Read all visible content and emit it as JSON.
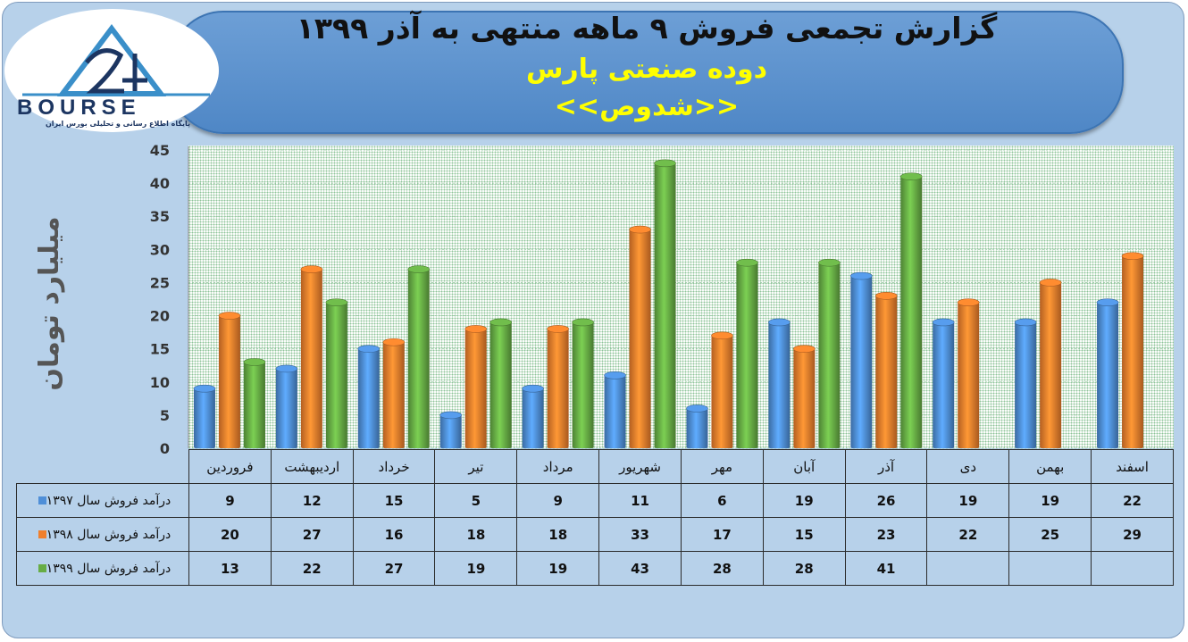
{
  "header": {
    "title": "گزارش تجمعی فروش ۹ ماهه منتهی به آذر ۱۳۹۹",
    "company": "دوده صنعتی پارس",
    "ticker": "<<شدوص>>"
  },
  "logo": {
    "text": "BOURSE",
    "subtitle": "پایگاه اطلاع رسانی و تحلیلی بورس ایران"
  },
  "chart_data": {
    "type": "bar",
    "categories": [
      "فروردین",
      "اردیبهشت",
      "خرداد",
      "تیر",
      "مرداد",
      "شهریور",
      "مهر",
      "آبان",
      "آذر",
      "دی",
      "بهمن",
      "اسفند"
    ],
    "series": [
      {
        "name": "درآمد فروش سال ۱۳۹۷",
        "color": "#4f8fd8",
        "values": [
          9,
          12,
          15,
          5,
          9,
          11,
          6,
          19,
          26,
          19,
          19,
          22
        ]
      },
      {
        "name": "درآمد فروش سال ۱۳۹۸",
        "color": "#f07f2c",
        "values": [
          20,
          27,
          16,
          18,
          18,
          33,
          17,
          15,
          23,
          22,
          25,
          29
        ]
      },
      {
        "name": "درآمد فروش سال ۱۳۹۹",
        "color": "#67ad45",
        "values": [
          13,
          22,
          27,
          19,
          19,
          43,
          28,
          28,
          41,
          null,
          null,
          null
        ]
      }
    ],
    "ylabel": "میلیارد تومان",
    "ylim": [
      0,
      45
    ],
    "yticks": [
      0,
      5,
      10,
      15,
      20,
      25,
      30,
      35,
      40,
      45
    ],
    "grid": true,
    "legend": "data-table"
  }
}
